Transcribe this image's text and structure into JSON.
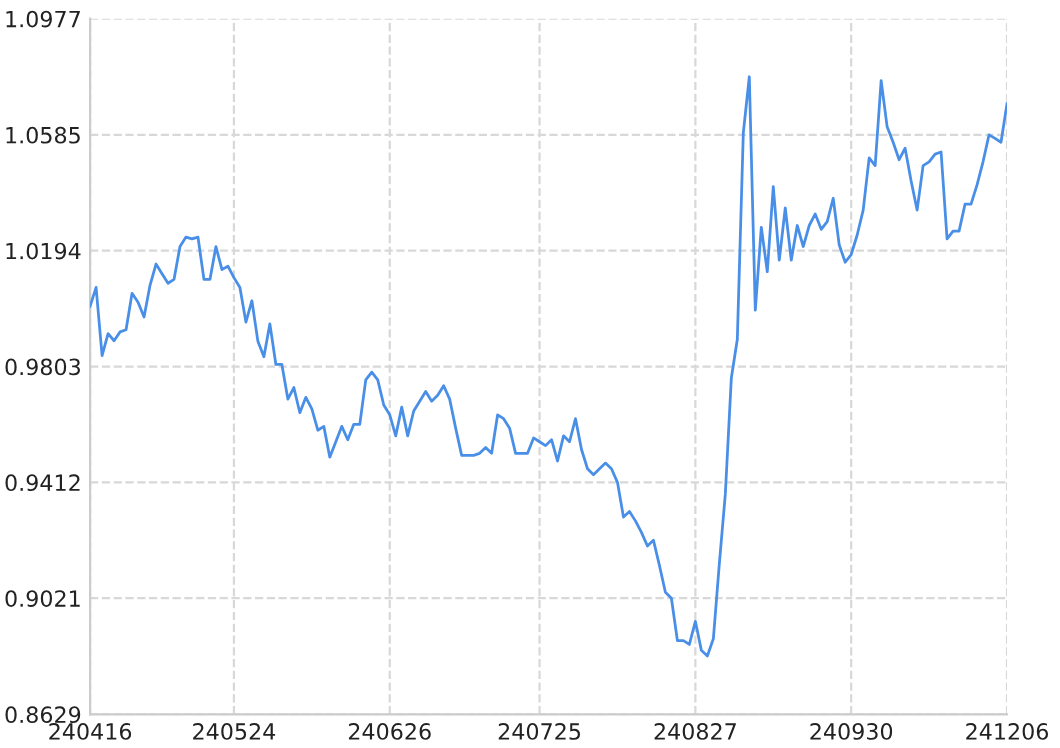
{
  "chart_data": {
    "type": "line",
    "categories": [
      "240416",
      null,
      null,
      null,
      null,
      null,
      null,
      null,
      null,
      null,
      null,
      null,
      null,
      null,
      null,
      null,
      null,
      null,
      null,
      null,
      null,
      null,
      null,
      null,
      "240524",
      null,
      null,
      null,
      null,
      null,
      null,
      null,
      null,
      null,
      null,
      null,
      null,
      null,
      null,
      null,
      null,
      null,
      null,
      null,
      null,
      null,
      null,
      null,
      null,
      null,
      "240626",
      null,
      null,
      null,
      null,
      null,
      null,
      null,
      null,
      null,
      null,
      null,
      null,
      null,
      null,
      null,
      null,
      null,
      null,
      null,
      null,
      null,
      null,
      null,
      null,
      "240725",
      null,
      null,
      null,
      null,
      null,
      null,
      null,
      null,
      null,
      null,
      null,
      null,
      null,
      null,
      null,
      null,
      null,
      null,
      null,
      null,
      null,
      null,
      null,
      null,
      null,
      "240827",
      null,
      null,
      null,
      null,
      null,
      null,
      null,
      null,
      null,
      null,
      null,
      null,
      null,
      null,
      null,
      null,
      null,
      null,
      null,
      null,
      null,
      null,
      null,
      null,
      null,
      "240930",
      null,
      null,
      null,
      null,
      null,
      null,
      null,
      null,
      null,
      null,
      null,
      null,
      null,
      null,
      null,
      null,
      null,
      null,
      null,
      null,
      null,
      null,
      null,
      null,
      null,
      "241206"
    ],
    "series": [
      {
        "color": "#4a8fe7",
        "values": [
          1.0006,
          1.007,
          0.984,
          0.9914,
          0.989,
          0.992,
          0.9927,
          1.005,
          1.002,
          0.997,
          1.0077,
          1.0149,
          1.0116,
          1.0084,
          1.0097,
          1.0208,
          1.024,
          1.0234,
          1.024,
          1.0097,
          1.0097,
          1.0208,
          1.013,
          1.0142,
          1.0103,
          1.007,
          0.9953,
          1.0025,
          0.9888,
          0.9836,
          0.9947,
          0.981,
          0.981,
          0.9693,
          0.9732,
          0.9647,
          0.9699,
          0.966,
          0.9588,
          0.9601,
          0.9497,
          0.9549,
          0.9601,
          0.9556,
          0.9608,
          0.9608,
          0.9758,
          0.9784,
          0.9758,
          0.9673,
          0.964,
          0.9569,
          0.9666,
          0.9569,
          0.9653,
          0.9686,
          0.9719,
          0.9686,
          0.9706,
          0.9738,
          0.9693,
          0.9595,
          0.9503,
          0.9503,
          0.9503,
          0.951,
          0.953,
          0.951,
          0.964,
          0.9627,
          0.9595,
          0.951,
          0.951,
          0.951,
          0.9562,
          0.9549,
          0.9536,
          0.9556,
          0.9484,
          0.9569,
          0.9549,
          0.9627,
          0.9523,
          0.9458,
          0.9438,
          0.9458,
          0.9477,
          0.9458,
          0.9412,
          0.9295,
          0.9314,
          0.9282,
          0.9243,
          0.9197,
          0.9217,
          0.9132,
          0.9041,
          0.9021,
          0.8878,
          0.8878,
          0.8865,
          0.8943,
          0.8845,
          0.8826,
          0.8884,
          0.9138,
          0.9373,
          0.9764,
          0.9895,
          1.0592,
          1.0781,
          0.9993,
          1.0273,
          1.0123,
          1.041,
          1.0162,
          1.0338,
          1.0162,
          1.0279,
          1.0208,
          1.0279,
          1.0318,
          1.0266,
          1.0292,
          1.0371,
          1.0214,
          1.0155,
          1.0181,
          1.0247,
          1.0331,
          1.0507,
          1.0481,
          1.0768,
          1.0612,
          1.056,
          1.0501,
          1.054,
          1.0429,
          1.0331,
          1.0481,
          1.0494,
          1.052,
          1.0527,
          1.0234,
          1.026,
          1.026,
          1.0351,
          1.0351,
          1.0416,
          1.0494,
          1.0585,
          1.0573,
          1.056,
          1.069
        ]
      }
    ],
    "ylim": [
      0.8629,
      1.0977
    ],
    "yticks": [
      0.8629,
      0.9021,
      0.9412,
      0.9803,
      1.0194,
      1.0585,
      1.0977
    ],
    "grid": true,
    "line_style": "solid"
  }
}
